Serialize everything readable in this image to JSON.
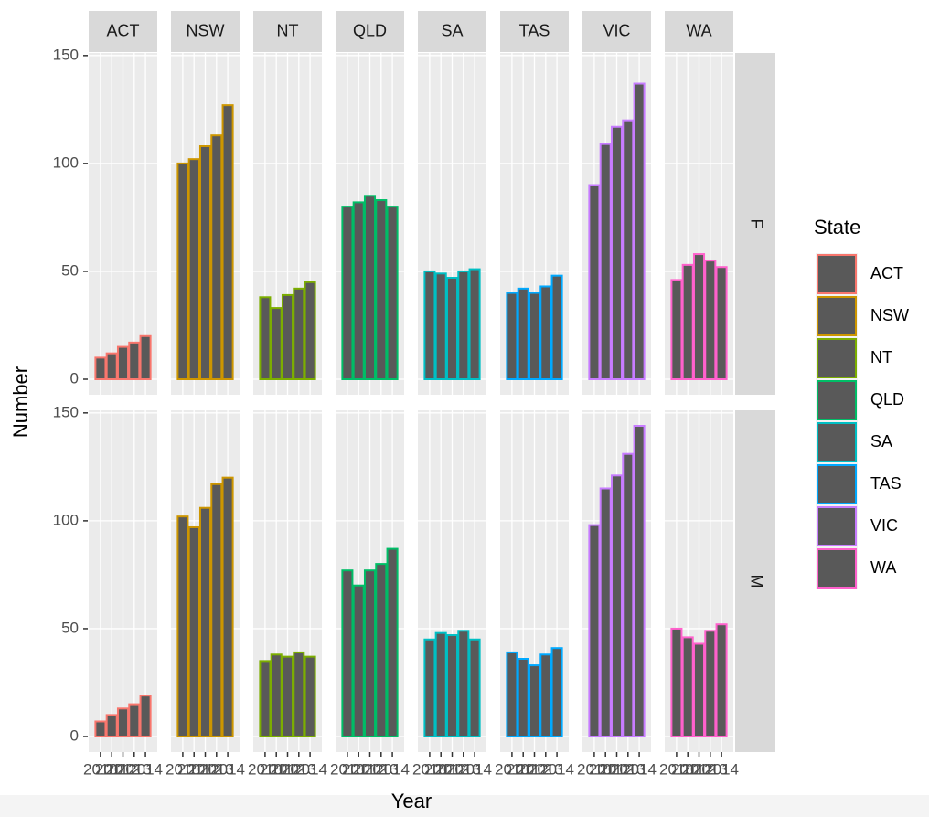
{
  "chart_data": {
    "type": "bar",
    "x_label": "Year",
    "y_label": "Number",
    "legend_title": "State",
    "categories": [
      "2010",
      "2011",
      "2012",
      "2013",
      "2014"
    ],
    "facet_rows": [
      "F",
      "M"
    ],
    "bar_fill": "#595959",
    "ylim": [
      -7.2,
      151.2
    ],
    "yticks": [
      0,
      50,
      100,
      150
    ],
    "grid": true,
    "legend": "right",
    "series": [
      {
        "name": "ACT",
        "color": "#F8766D",
        "values": [
          [
            10,
            12,
            15,
            17,
            20
          ],
          [
            7,
            10,
            13,
            15,
            19
          ]
        ]
      },
      {
        "name": "NSW",
        "color": "#CD9600",
        "values": [
          [
            100,
            102,
            108,
            113,
            127
          ],
          [
            102,
            97,
            106,
            117,
            120
          ]
        ]
      },
      {
        "name": "NT",
        "color": "#7CAE00",
        "values": [
          [
            38,
            33,
            39,
            42,
            45
          ],
          [
            35,
            38,
            37,
            39,
            37
          ]
        ]
      },
      {
        "name": "QLD",
        "color": "#00BE67",
        "values": [
          [
            80,
            82,
            85,
            83,
            80
          ],
          [
            77,
            70,
            77,
            80,
            87
          ]
        ]
      },
      {
        "name": "SA",
        "color": "#00BFC4",
        "values": [
          [
            50,
            49,
            47,
            50,
            51
          ],
          [
            45,
            48,
            47,
            49,
            45
          ]
        ]
      },
      {
        "name": "TAS",
        "color": "#00A9FF",
        "values": [
          [
            40,
            42,
            40,
            43,
            48
          ],
          [
            39,
            36,
            33,
            38,
            41
          ]
        ]
      },
      {
        "name": "VIC",
        "color": "#C77CFF",
        "values": [
          [
            90,
            109,
            117,
            120,
            137
          ],
          [
            98,
            115,
            121,
            131,
            144
          ]
        ]
      },
      {
        "name": "WA",
        "color": "#FF61CC",
        "values": [
          [
            46,
            53,
            58,
            55,
            52
          ],
          [
            50,
            46,
            43,
            49,
            52
          ]
        ]
      }
    ]
  }
}
